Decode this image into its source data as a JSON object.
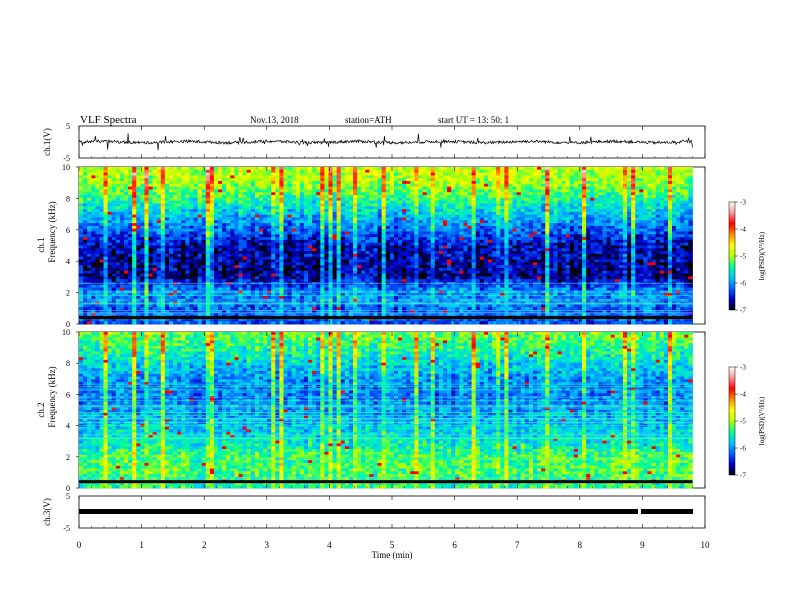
{
  "header": {
    "title": "VLF  Spectra",
    "date": "Nov.13, 2018",
    "station": "station=ATH",
    "start": "start  UT  =    13: 50: 1"
  },
  "chart_data": {
    "type": "heatmap",
    "x_axis": {
      "label": "Time  (min)",
      "range": [
        0,
        10
      ],
      "ticks": [
        "0",
        "1",
        "2",
        "3",
        "4",
        "5",
        "6",
        "7",
        "8",
        "9",
        "10"
      ]
    },
    "colorbar": {
      "label": "log(PSD)(V²/Hz)",
      "range": [
        -7,
        -3
      ],
      "ticks": [
        "-3",
        "-4",
        "-5",
        "-6",
        "-7"
      ],
      "colors": [
        "#000000",
        "#0000c8",
        "#0064ff",
        "#00c8ff",
        "#00ff96",
        "#b4ff00",
        "#ffff00",
        "#ff8c00",
        "#ff0000",
        "#ff9696",
        "#ffffff"
      ]
    },
    "panels": [
      {
        "id": "ch1-waveform",
        "kind": "line",
        "ylabel": "ch.1(V)",
        "ylim": [
          -5,
          5
        ],
        "yticks": [
          "5",
          "-5"
        ],
        "baseline_value": 0,
        "noise_amplitude": 0.45,
        "spike_amplitude": 2.5
      },
      {
        "id": "ch1-spectrogram",
        "kind": "spectrogram",
        "ylabel_channel": "ch.1",
        "ylabel": "Frequency  (kHz)",
        "ylim": [
          0,
          10
        ],
        "yticks": [
          "0",
          "2",
          "4",
          "6",
          "8",
          "10"
        ],
        "profile": [
          -6.3,
          -6.2,
          -6.0,
          -6.7,
          -6.7,
          -6.6,
          -6.2,
          -5.8,
          -5.4,
          -5.0,
          -4.9
        ],
        "flags": "ch1"
      },
      {
        "id": "ch2-spectrogram",
        "kind": "spectrogram",
        "ylabel_channel": "ch.2",
        "ylabel": "Frequency  (kHz)",
        "ylim": [
          0,
          10
        ],
        "yticks": [
          "0",
          "2",
          "4",
          "6",
          "8",
          "10"
        ],
        "profile": [
          -5.4,
          -5.3,
          -5.3,
          -5.6,
          -5.8,
          -6.0,
          -6.1,
          -6.0,
          -5.7,
          -5.4,
          -5.2
        ],
        "flags": "ch2"
      },
      {
        "id": "ch3-waveform",
        "kind": "line",
        "ylabel": "ch.3(V)",
        "ylim": [
          -5,
          5
        ],
        "yticks": [
          "5",
          "-5"
        ],
        "baseline_value": 0,
        "gap_at_min": 9.0
      }
    ],
    "data_end_min": 9.8
  }
}
